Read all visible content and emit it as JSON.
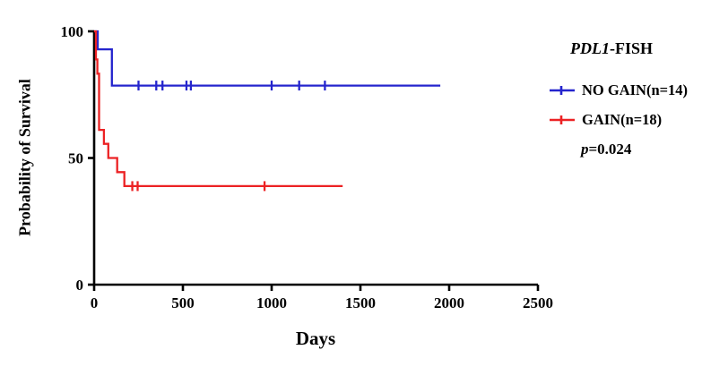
{
  "page": {
    "background": "#ffffff"
  },
  "chart_data": {
    "type": "line",
    "subtype": "kaplan-meier-survival",
    "title_italic": "PDL1",
    "title_rest": "-FISH",
    "xlabel": "Days",
    "ylabel": "Probability of Survival",
    "xlim": [
      0,
      2500
    ],
    "ylim": [
      0,
      100
    ],
    "x_ticks": [
      0,
      500,
      1000,
      1500,
      2000,
      2500
    ],
    "y_ticks": [
      0,
      50,
      100
    ],
    "grid": false,
    "legend_position": "right",
    "axis_color": "#000000",
    "p_label": {
      "italic": "p",
      "rest": "=0.024"
    },
    "series": [
      {
        "name": "NO GAIN(n=14)",
        "color": "#2424cd",
        "steps": [
          [
            0,
            100
          ],
          [
            20,
            100
          ],
          [
            20,
            92.9
          ],
          [
            100,
            92.9
          ],
          [
            100,
            78.6
          ],
          [
            1950,
            78.6
          ]
        ],
        "censors": [
          [
            250,
            78.6
          ],
          [
            350,
            78.6
          ],
          [
            385,
            78.6
          ],
          [
            520,
            78.6
          ],
          [
            545,
            78.6
          ],
          [
            1000,
            78.6
          ],
          [
            1155,
            78.6
          ],
          [
            1300,
            78.6
          ]
        ]
      },
      {
        "name": "GAIN(n=18)",
        "color": "#ec2224",
        "steps": [
          [
            0,
            100
          ],
          [
            10,
            100
          ],
          [
            10,
            88.9
          ],
          [
            18,
            88.9
          ],
          [
            18,
            83.3
          ],
          [
            28,
            83.3
          ],
          [
            28,
            61.1
          ],
          [
            55,
            61.1
          ],
          [
            55,
            55.6
          ],
          [
            80,
            55.6
          ],
          [
            80,
            50
          ],
          [
            130,
            50
          ],
          [
            130,
            44.4
          ],
          [
            170,
            44.4
          ],
          [
            170,
            38.9
          ],
          [
            1400,
            38.9
          ]
        ],
        "censors": [
          [
            215,
            38.9
          ],
          [
            245,
            38.9
          ],
          [
            960,
            38.9
          ]
        ]
      }
    ]
  }
}
